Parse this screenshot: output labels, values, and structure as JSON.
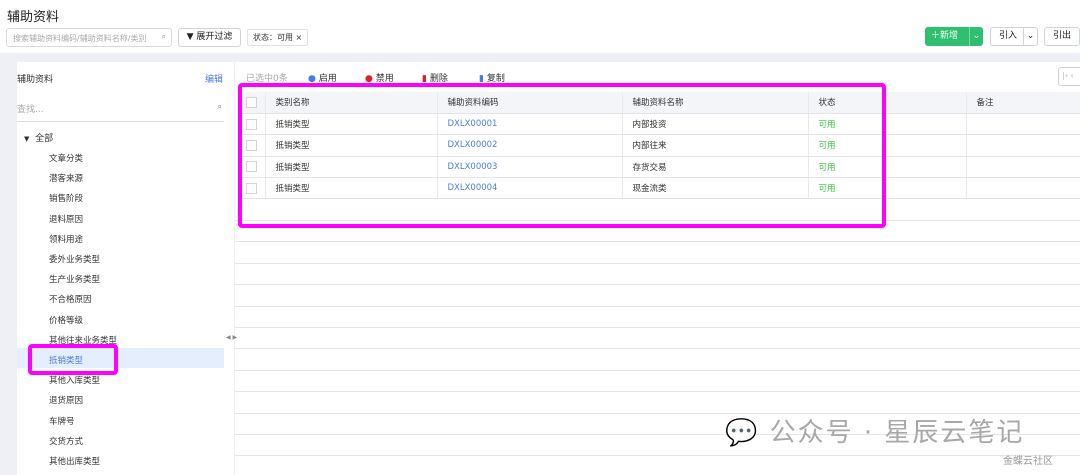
{
  "header": {
    "title": "辅助资料",
    "search_placeholder": "搜索辅助资料编码/辅助资料名称/类别",
    "filter_button": "展开过滤",
    "filter_tag": "状态：可用",
    "filter_tag_close": "×",
    "new_button": "新增",
    "import_button": "引入",
    "export_button": "引出"
  },
  "sidebar": {
    "title": "辅助资料",
    "edit_link": "编辑",
    "search_placeholder": "查找...",
    "root": "全部",
    "items": [
      "文章分类",
      "潜客来源",
      "销售阶段",
      "退料原因",
      "领料用途",
      "委外业务类型",
      "生产业务类型",
      "不合格原因",
      "价格等级",
      "其他往来业务类型",
      "抵销类型",
      "其他入库类型",
      "退货原因",
      "车牌号",
      "交货方式",
      "其他出库类型"
    ],
    "selected_index": 10
  },
  "toolbar": {
    "selected_count": "已选中0条",
    "enable": "启用",
    "disable": "禁用",
    "delete": "删除",
    "copy": "复制"
  },
  "table": {
    "columns": [
      "类别名称",
      "辅助资料编码",
      "辅助资料名称",
      "状态",
      "备注"
    ],
    "rows": [
      [
        "抵销类型",
        "DXLX00001",
        "内部投资",
        "可用",
        ""
      ],
      [
        "抵销类型",
        "DXLX00002",
        "内部往来",
        "可用",
        ""
      ],
      [
        "抵销类型",
        "DXLX00003",
        "存货交易",
        "可用",
        ""
      ],
      [
        "抵销类型",
        "DXLX00004",
        "现金流类",
        "可用",
        ""
      ]
    ]
  },
  "watermark": {
    "text": "公众号 · 星辰云笔记",
    "sub": "金蝶云社区"
  },
  "colors": {
    "accent": "#2fbf71",
    "link": "#4a7fe0",
    "status_ok": "#3bbf3b",
    "highlight": "#ff00ff"
  }
}
